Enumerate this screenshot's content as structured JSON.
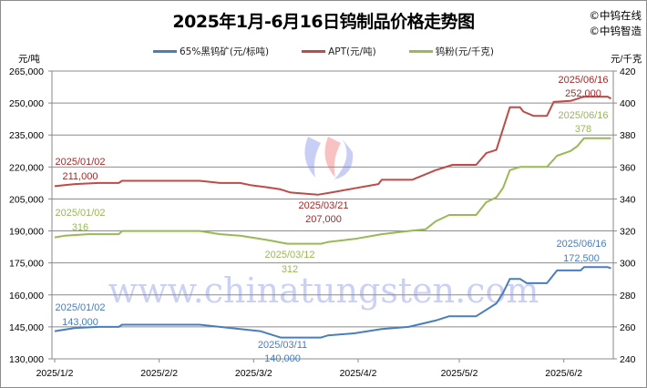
{
  "chart_data": {
    "type": "line",
    "title": "2025年1月-6月16日钨制品价格走势图",
    "brand": [
      "©中钨在线",
      "©中钨智造"
    ],
    "watermark": "www.chinatungsten.com",
    "left_axis": {
      "unit": "元/吨",
      "ylim": [
        130000,
        265000
      ],
      "ticks": [
        "130,000",
        "145,000",
        "160,000",
        "175,000",
        "190,000",
        "205,000",
        "220,000",
        "235,000",
        "250,000",
        "265,000"
      ]
    },
    "right_axis": {
      "unit": "元/千克",
      "ylim": [
        240,
        420
      ],
      "ticks": [
        "240",
        "260",
        "280",
        "300",
        "320",
        "340",
        "360",
        "380",
        "400",
        "420"
      ]
    },
    "x_ticks": [
      "2025/1/2",
      "2025/2/2",
      "2025/3/2",
      "2025/4/2",
      "2025/5/2",
      "2025/6/2"
    ],
    "x_range": [
      "2025-01-02",
      "2025-06-16"
    ],
    "grid": "horizontal",
    "legend_placement": "top",
    "series": [
      {
        "name": "65%黑钨矿(元/标吨)",
        "axis": "left",
        "color": "#4a7ebb",
        "points": [
          [
            "2025-01-02",
            143000
          ],
          [
            "2025-01-08",
            144500
          ],
          [
            "2025-01-15",
            145000
          ],
          [
            "2025-01-21",
            145000
          ],
          [
            "2025-01-22",
            146000
          ],
          [
            "2025-02-14",
            146000
          ],
          [
            "2025-02-20",
            145000
          ],
          [
            "2025-02-26",
            144000
          ],
          [
            "2025-03-04",
            143000
          ],
          [
            "2025-03-06",
            142000
          ],
          [
            "2025-03-10",
            140000
          ],
          [
            "2025-03-22",
            140000
          ],
          [
            "2025-03-24",
            141000
          ],
          [
            "2025-04-01",
            142000
          ],
          [
            "2025-04-09",
            144000
          ],
          [
            "2025-04-17",
            145000
          ],
          [
            "2025-04-21",
            146500
          ],
          [
            "2025-04-25",
            148000
          ],
          [
            "2025-04-29",
            150000
          ],
          [
            "2025-05-07",
            150000
          ],
          [
            "2025-05-10",
            153000
          ],
          [
            "2025-05-13",
            156000
          ],
          [
            "2025-05-15",
            161000
          ],
          [
            "2025-05-17",
            167500
          ],
          [
            "2025-05-20",
            167500
          ],
          [
            "2025-05-22",
            165500
          ],
          [
            "2025-05-28",
            165500
          ],
          [
            "2025-05-31",
            171500
          ],
          [
            "2025-06-07",
            171500
          ],
          [
            "2025-06-08",
            173000
          ],
          [
            "2025-06-15",
            173000
          ],
          [
            "2025-06-16",
            172500
          ]
        ]
      },
      {
        "name": "APT(元/吨)",
        "axis": "left",
        "color": "#be4b48",
        "points": [
          [
            "2025-01-02",
            211000
          ],
          [
            "2025-01-08",
            212000
          ],
          [
            "2025-01-15",
            212500
          ],
          [
            "2025-01-21",
            212500
          ],
          [
            "2025-01-22",
            213500
          ],
          [
            "2025-02-14",
            213500
          ],
          [
            "2025-02-20",
            212500
          ],
          [
            "2025-02-26",
            212500
          ],
          [
            "2025-03-01",
            211500
          ],
          [
            "2025-03-06",
            210500
          ],
          [
            "2025-03-10",
            209500
          ],
          [
            "2025-03-13",
            208000
          ],
          [
            "2025-03-21",
            207000
          ],
          [
            "2025-03-25",
            208000
          ],
          [
            "2025-04-01",
            210000
          ],
          [
            "2025-04-08",
            212000
          ],
          [
            "2025-04-09",
            214000
          ],
          [
            "2025-04-18",
            214000
          ],
          [
            "2025-04-25",
            218500
          ],
          [
            "2025-04-30",
            221000
          ],
          [
            "2025-05-07",
            221000
          ],
          [
            "2025-05-10",
            226500
          ],
          [
            "2025-05-13",
            228000
          ],
          [
            "2025-05-15",
            238000
          ],
          [
            "2025-05-17",
            248000
          ],
          [
            "2025-05-20",
            248000
          ],
          [
            "2025-05-21",
            246000
          ],
          [
            "2025-05-24",
            244000
          ],
          [
            "2025-05-28",
            244000
          ],
          [
            "2025-05-30",
            250500
          ],
          [
            "2025-06-04",
            251000
          ],
          [
            "2025-06-08",
            253000
          ],
          [
            "2025-06-15",
            253000
          ],
          [
            "2025-06-16",
            252000
          ]
        ]
      },
      {
        "name": "钨粉(元/千克)",
        "axis": "right",
        "color": "#98b954",
        "points": [
          [
            "2025-01-02",
            316
          ],
          [
            "2025-01-05",
            317
          ],
          [
            "2025-01-12",
            318
          ],
          [
            "2025-01-21",
            318
          ],
          [
            "2025-01-22",
            320
          ],
          [
            "2025-02-14",
            320
          ],
          [
            "2025-02-20",
            318
          ],
          [
            "2025-02-26",
            317
          ],
          [
            "2025-03-04",
            315
          ],
          [
            "2025-03-07",
            314
          ],
          [
            "2025-03-12",
            312
          ],
          [
            "2025-03-22",
            312
          ],
          [
            "2025-03-24",
            313
          ],
          [
            "2025-04-01",
            315
          ],
          [
            "2025-04-09",
            318
          ],
          [
            "2025-04-17",
            320
          ],
          [
            "2025-04-22",
            321
          ],
          [
            "2025-04-25",
            326
          ],
          [
            "2025-04-29",
            330
          ],
          [
            "2025-05-07",
            330
          ],
          [
            "2025-05-10",
            338
          ],
          [
            "2025-05-13",
            341
          ],
          [
            "2025-05-15",
            347
          ],
          [
            "2025-05-17",
            358
          ],
          [
            "2025-05-20",
            360
          ],
          [
            "2025-05-28",
            360
          ],
          [
            "2025-05-31",
            367
          ],
          [
            "2025-06-04",
            370
          ],
          [
            "2025-06-06",
            373
          ],
          [
            "2025-06-08",
            378
          ],
          [
            "2025-06-16",
            378
          ]
        ]
      }
    ],
    "annotations": [
      {
        "series": 1,
        "date": "2025/01/02",
        "value": "211,000"
      },
      {
        "series": 2,
        "date": "2025/01/02",
        "value": "316"
      },
      {
        "series": 0,
        "date": "2025/01/02",
        "value": "143,000"
      },
      {
        "series": 1,
        "date": "2025/03/21",
        "value": "207,000"
      },
      {
        "series": 2,
        "date": "2025/03/12",
        "value": "312"
      },
      {
        "series": 0,
        "date": "2025/03/11",
        "value": "140,000"
      },
      {
        "series": 1,
        "date": "2025/06/16",
        "value": "252,000"
      },
      {
        "series": 2,
        "date": "2025/06/16",
        "value": "378"
      },
      {
        "series": 0,
        "date": "2025/06/16",
        "value": "172,500"
      }
    ]
  }
}
